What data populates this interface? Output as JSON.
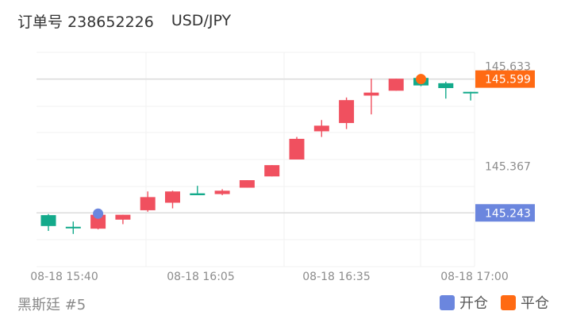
{
  "header": {
    "order_label": "订单号 238652226",
    "symbol": "USD/JPY"
  },
  "footer": {
    "strategy": "黑斯廷 #5"
  },
  "legend": [
    {
      "label": "开仓",
      "color": "#6b86de"
    },
    {
      "label": "平仓",
      "color": "#ff6a13"
    }
  ],
  "colors": {
    "up": "#f0505f",
    "down": "#13aa8b",
    "open_marker": "#6b86de",
    "close_marker": "#ff6a13"
  },
  "chart_data": {
    "type": "candlestick",
    "x_ticks": [
      "08-18 15:40",
      "08-18 16:05",
      "08-18 16:35",
      "08-18 17:00"
    ],
    "y_ticks": [
      "145.633",
      "145.367"
    ],
    "ylim": [
      145.1,
      145.67
    ],
    "grid": true,
    "candles": [
      {
        "o": 145.237,
        "h": 145.24,
        "l": 145.195,
        "c": 145.208
      },
      {
        "o": 145.206,
        "h": 145.22,
        "l": 145.187,
        "c": 145.204
      },
      {
        "o": 145.201,
        "h": 145.24,
        "l": 145.199,
        "c": 145.238
      },
      {
        "o": 145.225,
        "h": 145.238,
        "l": 145.213,
        "c": 145.238
      },
      {
        "o": 145.25,
        "h": 145.3,
        "l": 145.246,
        "c": 145.285
      },
      {
        "o": 145.27,
        "h": 145.302,
        "l": 145.255,
        "c": 145.3
      },
      {
        "o": 145.295,
        "h": 145.315,
        "l": 145.29,
        "c": 145.29
      },
      {
        "o": 145.293,
        "h": 145.306,
        "l": 145.29,
        "c": 145.302
      },
      {
        "o": 145.31,
        "h": 145.33,
        "l": 145.31,
        "c": 145.33
      },
      {
        "o": 145.34,
        "h": 145.37,
        "l": 145.34,
        "c": 145.37
      },
      {
        "o": 145.385,
        "h": 145.445,
        "l": 145.385,
        "c": 145.44
      },
      {
        "o": 145.46,
        "h": 145.49,
        "l": 145.445,
        "c": 145.475
      },
      {
        "o": 145.482,
        "h": 145.55,
        "l": 145.466,
        "c": 145.543
      },
      {
        "o": 145.555,
        "h": 145.6,
        "l": 145.505,
        "c": 145.563
      },
      {
        "o": 145.568,
        "h": 145.6,
        "l": 145.568,
        "c": 145.6
      },
      {
        "o": 145.602,
        "h": 145.61,
        "l": 145.58,
        "c": 145.582
      },
      {
        "o": 145.588,
        "h": 145.592,
        "l": 145.547,
        "c": 145.575
      },
      {
        "o": 145.565,
        "h": 145.565,
        "l": 145.542,
        "c": 145.563
      }
    ],
    "markers": [
      {
        "type": "open",
        "index": 2,
        "price": 145.243
      },
      {
        "type": "close",
        "index": 15,
        "price": 145.599
      }
    ],
    "price_lines": [
      {
        "type": "close",
        "label": "145.599",
        "value": 145.599
      },
      {
        "type": "open",
        "label": "145.243",
        "value": 145.243
      }
    ]
  }
}
